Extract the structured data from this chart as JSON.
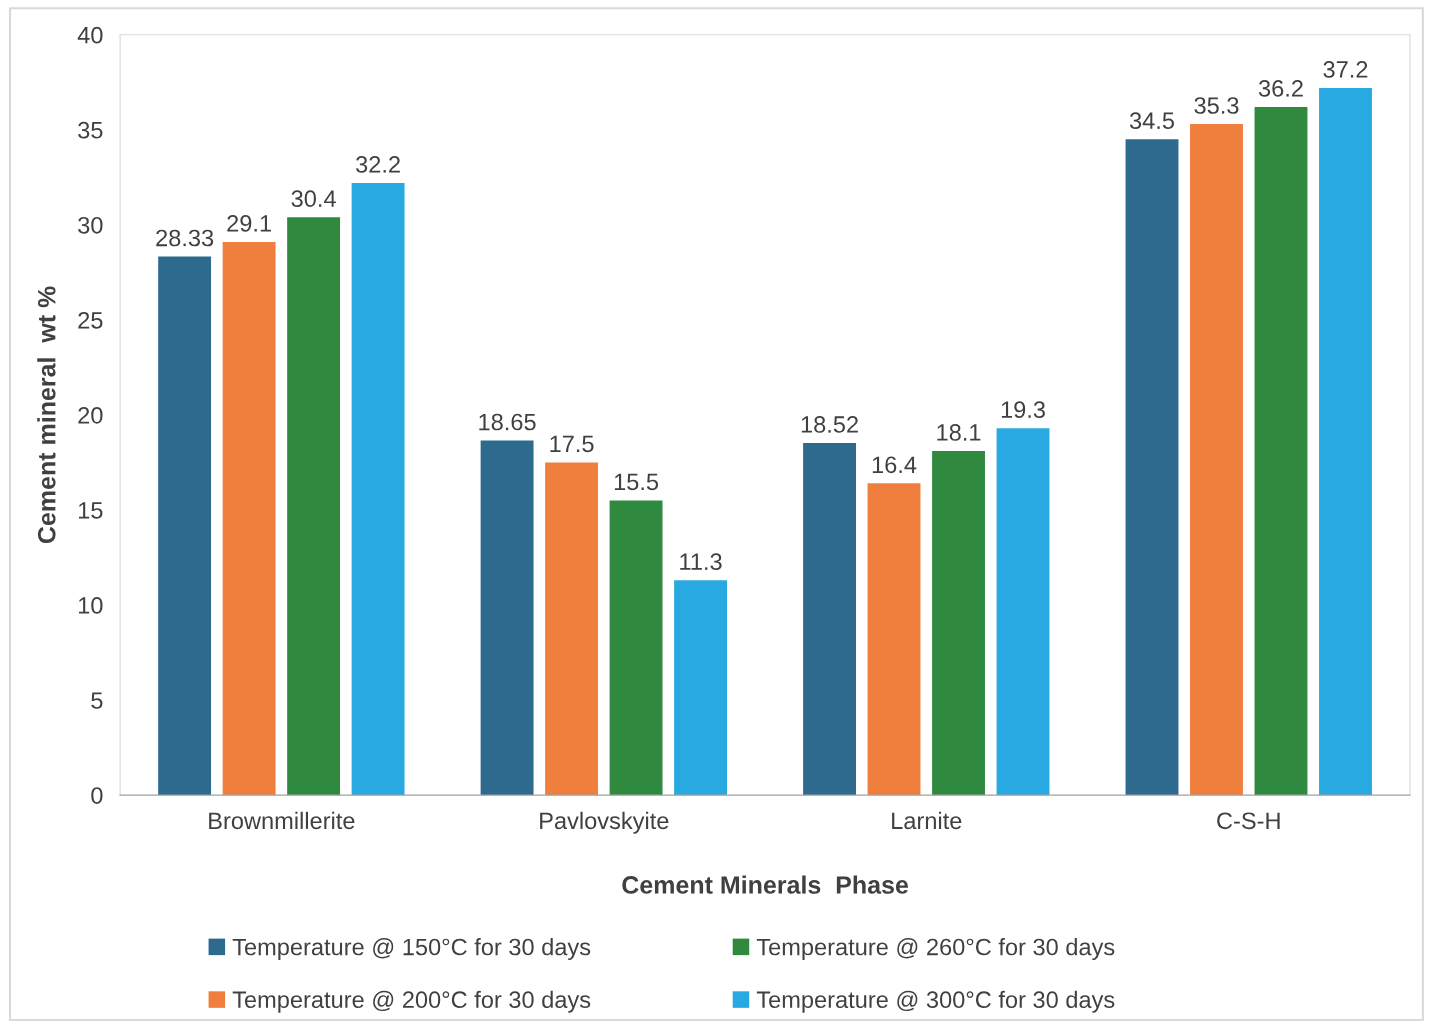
{
  "chart_data": {
    "type": "bar",
    "xlabel": "Cement Minerals  Phase",
    "ylabel": "Cement mineral  wt %",
    "categories": [
      "Brownmillerite",
      "Pavlovskyite",
      "Larnite",
      "C-S-H"
    ],
    "series": [
      {
        "name": "Temperature @ 150°C for 30 days",
        "color": "#2d6a8e",
        "values": [
          28.33,
          18.65,
          18.52,
          34.5
        ]
      },
      {
        "name": "Temperature @ 200°C for 30 days",
        "color": "#f07e3d",
        "values": [
          29.1,
          17.5,
          16.4,
          35.3
        ]
      },
      {
        "name": "Temperature @ 260°C for 30 days",
        "color": "#2f8a3f",
        "values": [
          30.4,
          15.5,
          18.1,
          36.2
        ]
      },
      {
        "name": "Temperature @ 300°C for 30 days",
        "color": "#29a9e1",
        "values": [
          32.2,
          11.3,
          19.3,
          37.2
        ]
      }
    ],
    "ylim": [
      0,
      40
    ],
    "yticks": [
      0,
      5,
      10,
      15,
      20,
      25,
      30,
      35,
      40
    ],
    "grid": false,
    "legend": "bottom",
    "data_labels": true
  }
}
